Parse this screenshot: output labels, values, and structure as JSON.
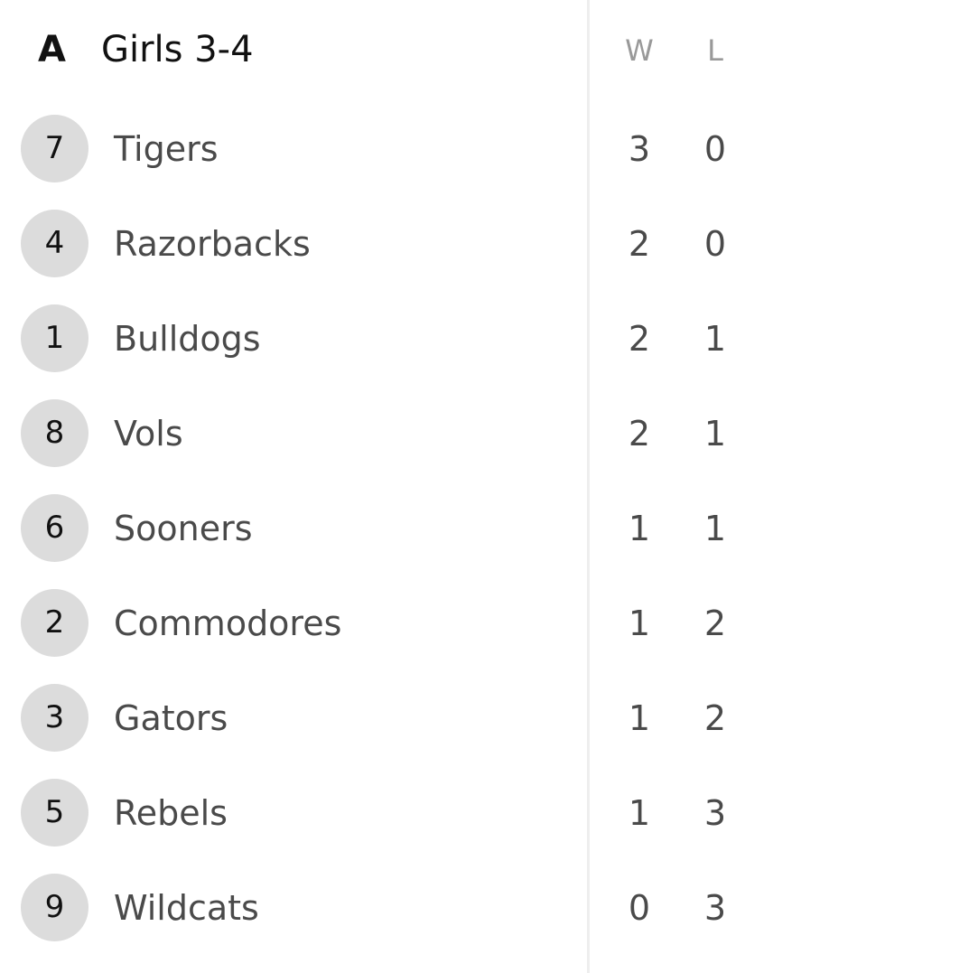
{
  "group": {
    "letter": "A",
    "title": "Girls 3-4"
  },
  "columns": {
    "wins": "W",
    "losses": "L"
  },
  "teams": [
    {
      "seed": "7",
      "name": "Tigers",
      "wins": "3",
      "losses": "0"
    },
    {
      "seed": "4",
      "name": "Razorbacks",
      "wins": "2",
      "losses": "0"
    },
    {
      "seed": "1",
      "name": "Bulldogs",
      "wins": "2",
      "losses": "1"
    },
    {
      "seed": "8",
      "name": "Vols",
      "wins": "2",
      "losses": "1"
    },
    {
      "seed": "6",
      "name": "Sooners",
      "wins": "1",
      "losses": "1"
    },
    {
      "seed": "2",
      "name": "Commodores",
      "wins": "1",
      "losses": "2"
    },
    {
      "seed": "3",
      "name": "Gators",
      "wins": "1",
      "losses": "2"
    },
    {
      "seed": "5",
      "name": "Rebels",
      "wins": "1",
      "losses": "3"
    },
    {
      "seed": "9",
      "name": "Wildcats",
      "wins": "0",
      "losses": "3"
    }
  ],
  "colors": {
    "seed_background": "#dcdcdc",
    "text_primary": "#111111",
    "text_secondary": "#4a4a4a",
    "column_header": "#999999",
    "divider": "#eeeeee"
  }
}
